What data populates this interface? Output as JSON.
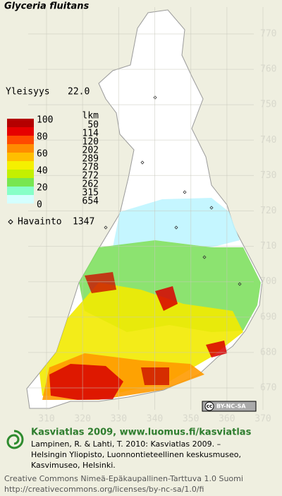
{
  "map": {
    "title": "Glyceria fluitans",
    "frequency_label": "Yleisyys",
    "frequency_value": "22.0",
    "legend": {
      "scale_labels": [
        100,
        80,
        60,
        40,
        20,
        0
      ],
      "colors": [
        "#b40000",
        "#e60000",
        "#ff4a00",
        "#ff8c00",
        "#ffbe00",
        "#f5f000",
        "#c4f000",
        "#78e650",
        "#88ffc8",
        "#d4ffff"
      ],
      "count_header": "lkm",
      "counts": [
        50,
        114,
        120,
        202,
        289,
        278,
        272,
        262,
        315,
        654
      ]
    },
    "observations": {
      "label": "Havainto",
      "count": 1347
    },
    "northing_ticks": [
      770,
      760,
      750,
      740,
      730,
      720,
      710,
      700,
      690,
      680,
      670
    ],
    "easting_ticks": [
      310,
      320,
      330,
      340,
      350,
      360,
      370
    ],
    "license_badge": {
      "icon": "cc",
      "text": "BY-NC-SA"
    }
  },
  "footer": {
    "heading": "Kasviatlas 2009, www.luomus.fi/kasviatlas",
    "citation": [
      "Lampinen, R. & Lahti, T. 2010: Kasviatlas 2009. –",
      "Helsingin Yliopisto, Luonnontieteellinen keskusmuseo,",
      "Kasvimuseo, Helsinki."
    ],
    "license": [
      "Creative Commons Nimeä-Epäkaupallinen-Tarttuva 1.0 Suomi",
      "http://creativecommons.org/licenses/by-nc-sa/1.0/fi"
    ]
  }
}
